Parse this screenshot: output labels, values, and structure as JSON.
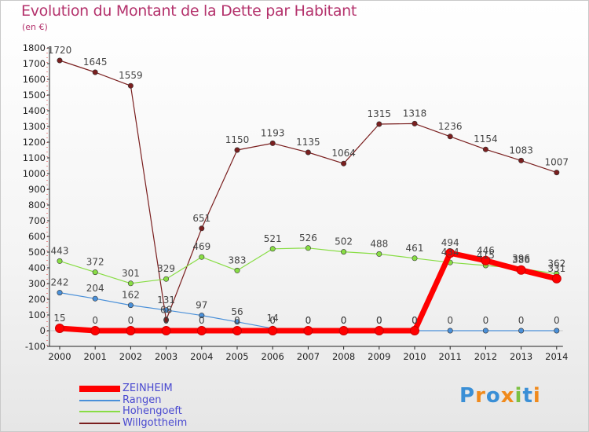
{
  "chart_data": {
    "type": "line",
    "title": "Evolution du Montant de la Dette par Habitant",
    "subtitle": "(en €)",
    "x": [
      "2000",
      "2001",
      "2002",
      "2003",
      "2004",
      "2005",
      "2006",
      "2007",
      "2008",
      "2009",
      "2010",
      "2011",
      "2012",
      "2013",
      "2014"
    ],
    "ylim": [
      -100,
      1800
    ],
    "yticks": [
      -100,
      0,
      100,
      200,
      300,
      400,
      500,
      600,
      700,
      800,
      900,
      1000,
      1100,
      1200,
      1300,
      1400,
      1500,
      1600,
      1700,
      1800
    ],
    "grid": false,
    "legend_position": "bottom-left",
    "series": [
      {
        "name": "ZEINHEIM",
        "color": "#ff0000",
        "values": [
          15,
          0,
          0,
          0,
          0,
          0,
          0,
          0,
          0,
          0,
          0,
          494,
          446,
          386,
          331
        ],
        "labels": [
          "15",
          "0",
          "0",
          "0",
          "0",
          "0",
          "0",
          "0",
          "0",
          "0",
          "0",
          "494",
          "446",
          "386",
          "331"
        ]
      },
      {
        "name": "Rangen",
        "color": "#4a90d9",
        "values": [
          242,
          204,
          162,
          131,
          97,
          56,
          14,
          0,
          0,
          0,
          0,
          0,
          0,
          0,
          0
        ],
        "labels": [
          "242",
          "204",
          "162",
          "131",
          "97",
          "56",
          "14",
          "0",
          "0",
          "0",
          "0",
          "0",
          "0",
          "0",
          "0"
        ]
      },
      {
        "name": "Hohengoeft",
        "color": "#88dd44",
        "values": [
          443,
          372,
          301,
          329,
          469,
          383,
          521,
          526,
          502,
          488,
          461,
          434,
          415,
          396,
          362
        ],
        "labels": [
          "443",
          "372",
          "301",
          "329",
          "469",
          "383",
          "521",
          "526",
          "502",
          "488",
          "461",
          "434",
          "415",
          "396",
          "362"
        ]
      },
      {
        "name": "Willgottheim",
        "color": "#7a1f1f",
        "values": [
          1720,
          1645,
          1559,
          68,
          651,
          1150,
          1193,
          1135,
          1064,
          1315,
          1318,
          1236,
          1154,
          1083,
          1007
        ],
        "labels": [
          "1720",
          "1645",
          "1559",
          "68",
          "651",
          "1150",
          "1193",
          "1135",
          "1064",
          "1315",
          "1318",
          "1236",
          "1154",
          "1083",
          "1007"
        ]
      }
    ]
  },
  "legend": {
    "items": [
      {
        "label": "ZEINHEIM",
        "color": "#ff0000"
      },
      {
        "label": "Rangen",
        "color": "#4a90d9"
      },
      {
        "label": "Hohengoeft",
        "color": "#88dd44"
      },
      {
        "label": "Willgottheim",
        "color": "#7a1f1f"
      }
    ]
  },
  "brand": {
    "letters": [
      "P",
      "r",
      "o",
      "x",
      "i",
      "t",
      "i"
    ],
    "colors": [
      "#3a8fd6",
      "#f08a1c",
      "#3a8fd6",
      "#f08a1c",
      "#7dc142",
      "#3a8fd6",
      "#f08a1c"
    ]
  }
}
